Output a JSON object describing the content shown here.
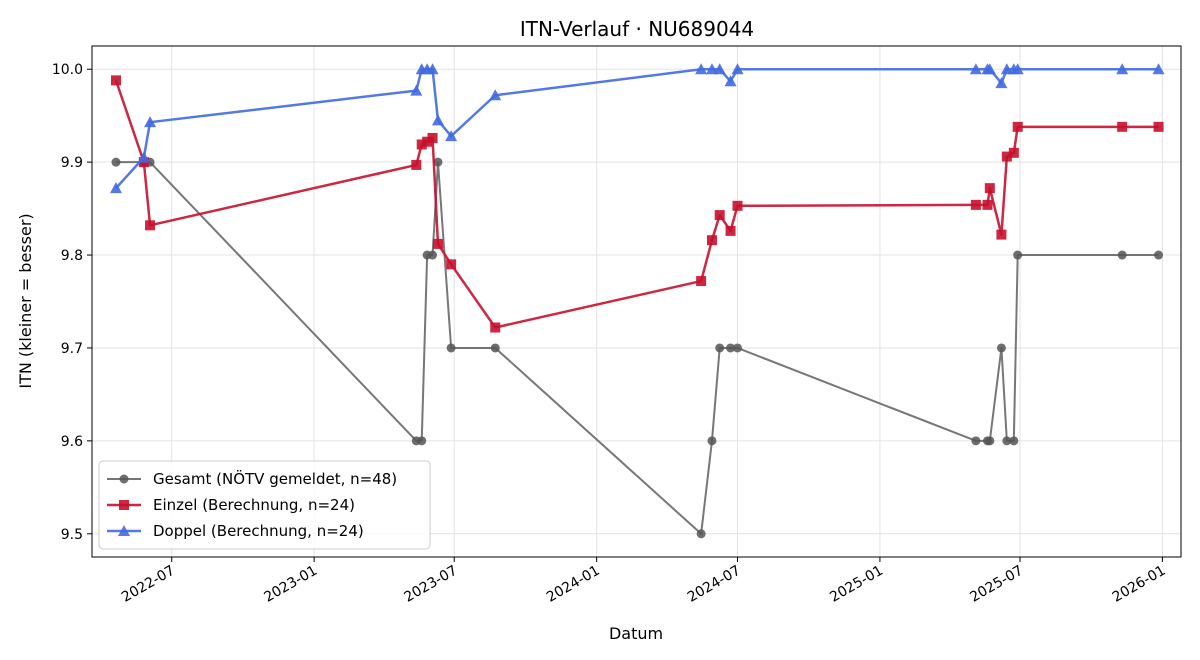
{
  "chart_data": {
    "type": "line",
    "title": "ITN-Verlauf · NU689044",
    "xlabel": "Datum",
    "ylabel": "ITN  (kleiner = besser)",
    "x_axis_type": "date",
    "xlim": [
      "2022-03-20",
      "2026-01-25"
    ],
    "ylim": [
      9.475,
      10.025
    ],
    "x_ticks": [
      {
        "date": "2022-07-01",
        "label": "2022-07"
      },
      {
        "date": "2023-01-01",
        "label": "2023-01"
      },
      {
        "date": "2023-07-01",
        "label": "2023-07"
      },
      {
        "date": "2024-01-01",
        "label": "2024-01"
      },
      {
        "date": "2024-07-01",
        "label": "2024-07"
      },
      {
        "date": "2025-01-01",
        "label": "2025-01"
      },
      {
        "date": "2025-07-01",
        "label": "2025-07"
      },
      {
        "date": "2026-01-01",
        "label": "2026-01"
      }
    ],
    "y_ticks": [
      {
        "value": 9.5,
        "label": "9.5"
      },
      {
        "value": 9.6,
        "label": "9.6"
      },
      {
        "value": 9.7,
        "label": "9.7"
      },
      {
        "value": 9.8,
        "label": "9.8"
      },
      {
        "value": 9.9,
        "label": "9.9"
      },
      {
        "value": 10.0,
        "label": "10.0"
      }
    ],
    "grid": true,
    "legend_position": "lower-left",
    "series": [
      {
        "name": "Gesamt (NÖTV gemeldet, n=48)",
        "color": "#555555",
        "marker": "circle",
        "points": [
          [
            "2022-04-20",
            9.9
          ],
          [
            "2022-05-26",
            9.9
          ],
          [
            "2022-06-03",
            9.9
          ],
          [
            "2023-05-13",
            9.6
          ],
          [
            "2023-05-20",
            9.6
          ],
          [
            "2023-05-27",
            9.8
          ],
          [
            "2023-06-03",
            9.8
          ],
          [
            "2023-06-10",
            9.9
          ],
          [
            "2023-06-27",
            9.7
          ],
          [
            "2023-08-23",
            9.7
          ],
          [
            "2024-05-15",
            9.5
          ],
          [
            "2024-05-29",
            9.6
          ],
          [
            "2024-06-08",
            9.7
          ],
          [
            "2024-06-22",
            9.7
          ],
          [
            "2024-07-01",
            9.7
          ],
          [
            "2025-05-05",
            9.6
          ],
          [
            "2025-05-20",
            9.6
          ],
          [
            "2025-05-23",
            9.6
          ],
          [
            "2025-06-07",
            9.7
          ],
          [
            "2025-06-14",
            9.6
          ],
          [
            "2025-06-23",
            9.6
          ],
          [
            "2025-06-28",
            9.8
          ],
          [
            "2025-11-10",
            9.8
          ],
          [
            "2025-12-27",
            9.8
          ]
        ]
      },
      {
        "name": "Einzel (Berechnung, n=24)",
        "color": "#c8102e",
        "marker": "square",
        "points": [
          [
            "2022-04-20",
            9.988
          ],
          [
            "2022-05-26",
            9.9
          ],
          [
            "2022-06-03",
            9.832
          ],
          [
            "2023-05-13",
            9.897
          ],
          [
            "2023-05-20",
            9.919
          ],
          [
            "2023-05-27",
            9.922
          ],
          [
            "2023-06-03",
            9.926
          ],
          [
            "2023-06-10",
            9.812
          ],
          [
            "2023-06-27",
            9.79
          ],
          [
            "2023-08-23",
            9.722
          ],
          [
            "2024-05-15",
            9.772
          ],
          [
            "2024-05-29",
            9.816
          ],
          [
            "2024-06-08",
            9.843
          ],
          [
            "2024-06-22",
            9.826
          ],
          [
            "2024-07-01",
            9.853
          ],
          [
            "2025-05-05",
            9.854
          ],
          [
            "2025-05-20",
            9.854
          ],
          [
            "2025-05-23",
            9.872
          ],
          [
            "2025-06-07",
            9.822
          ],
          [
            "2025-06-14",
            9.906
          ],
          [
            "2025-06-23",
            9.91
          ],
          [
            "2025-06-28",
            9.938
          ],
          [
            "2025-11-10",
            9.938
          ],
          [
            "2025-12-27",
            9.938
          ]
        ]
      },
      {
        "name": "Doppel (Berechnung, n=24)",
        "color": "#4169e1",
        "marker": "triangle",
        "points": [
          [
            "2022-04-20",
            9.872
          ],
          [
            "2022-05-26",
            9.905
          ],
          [
            "2022-06-03",
            9.943
          ],
          [
            "2023-05-13",
            9.977
          ],
          [
            "2023-05-20",
            10.0
          ],
          [
            "2023-05-27",
            10.0
          ],
          [
            "2023-06-03",
            10.0
          ],
          [
            "2023-06-10",
            9.945
          ],
          [
            "2023-06-27",
            9.928
          ],
          [
            "2023-08-23",
            9.972
          ],
          [
            "2024-05-15",
            10.0
          ],
          [
            "2024-05-29",
            10.0
          ],
          [
            "2024-06-08",
            10.0
          ],
          [
            "2024-06-22",
            9.987
          ],
          [
            "2024-07-01",
            10.0
          ],
          [
            "2025-05-05",
            10.0
          ],
          [
            "2025-05-20",
            10.0
          ],
          [
            "2025-05-23",
            10.0
          ],
          [
            "2025-06-07",
            9.985
          ],
          [
            "2025-06-14",
            10.0
          ],
          [
            "2025-06-23",
            10.0
          ],
          [
            "2025-06-28",
            10.0
          ],
          [
            "2025-11-10",
            10.0
          ],
          [
            "2025-12-27",
            10.0
          ]
        ]
      }
    ]
  }
}
